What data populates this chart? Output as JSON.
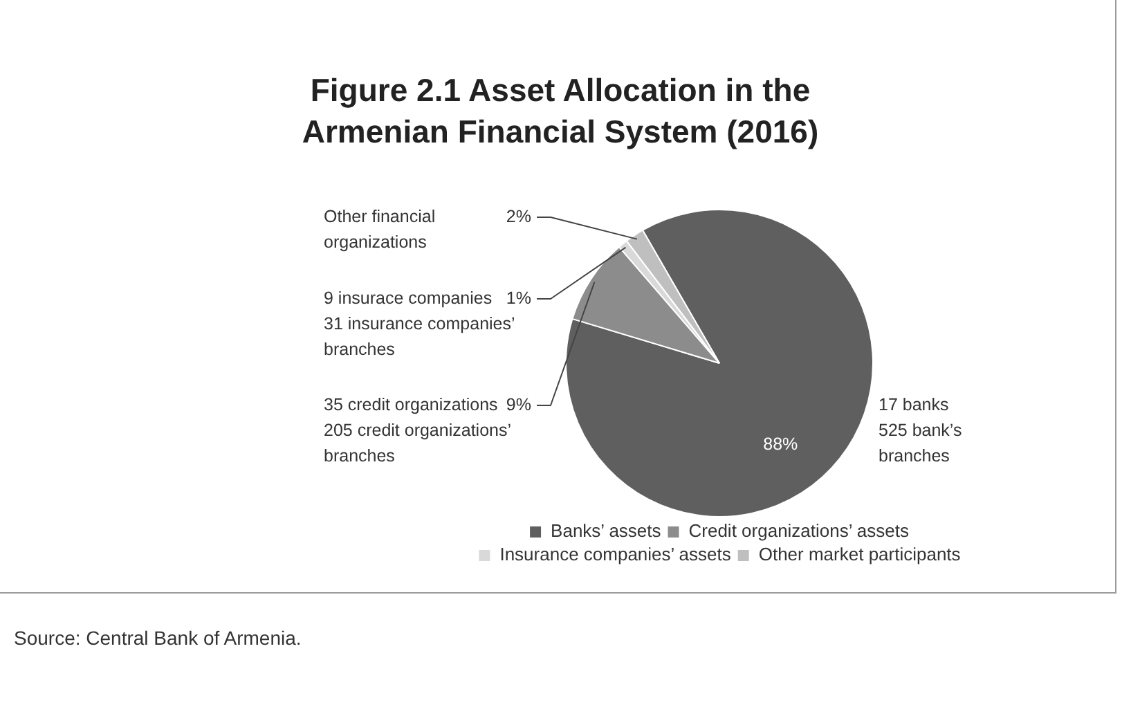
{
  "chart_data": {
    "type": "pie",
    "title": "Figure 2.1  Asset Allocation in the\nArmenian Financial System (2016)",
    "categories": [
      "Banks’ assets",
      "Credit organizations’ assets",
      "Insurance companies’ assets",
      "Other market participants"
    ],
    "values": [
      88,
      9,
      1,
      2
    ],
    "colors": [
      "#5f5f5f",
      "#8c8c8c",
      "#d9d9d9",
      "#bfbfbf"
    ],
    "value_labels": [
      "88%",
      "9%",
      "1%",
      "2%"
    ],
    "legend": "bottom",
    "annotations": [
      "17 banks\n525 bank’s\nbranches",
      "35 credit organizations\n205 credit organizations’\nbranches",
      "9 insurace companies\n31 insurance companies’\nbranches",
      "Other financial\norganizations",
      "Source: Central Bank of Armenia."
    ]
  }
}
